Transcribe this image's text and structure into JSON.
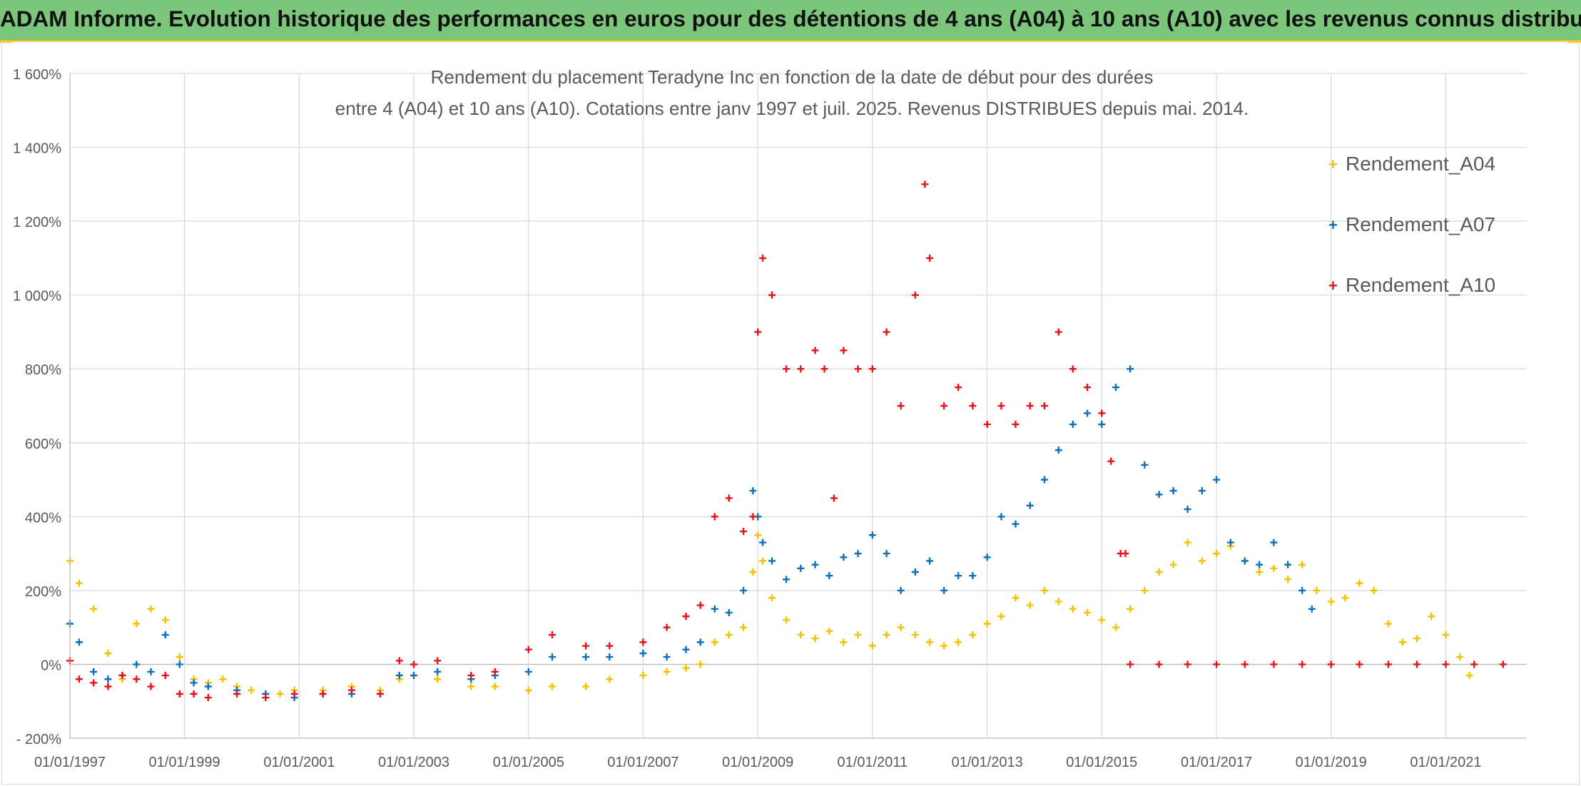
{
  "page_title": "ADAM Informe. Evolution historique des performances en euros pour des détentions de 4 ans (A04) à 10 ans (A10) avec les revenus connus distribués",
  "chart_data": {
    "type": "scatter",
    "title": "Rendement du placement Teradyne Inc en fonction de la date de début pour des durées",
    "subtitle": "entre 4 (A04) et 10 ans (A10). Cotations entre janv 1997 et juil. 2025. Revenus DISTRIBUES depuis mai. 2014.",
    "xlabel": "",
    "ylabel": "",
    "x_type": "date",
    "xlim": [
      "1997-01-01",
      "2022-06-01"
    ],
    "ylim": [
      -200,
      1600
    ],
    "y_unit": "%",
    "y_ticks": [
      -200,
      0,
      200,
      400,
      600,
      800,
      1000,
      1200,
      1400,
      1600
    ],
    "y_tick_labels": [
      "- 200%",
      "0%",
      "200%",
      "400%",
      "600%",
      "800%",
      "1 000%",
      "1 200%",
      "1 400%",
      "1 600%"
    ],
    "x_ticks": [
      "1997-01-01",
      "1999-01-01",
      "2001-01-01",
      "2003-01-01",
      "2005-01-01",
      "2007-01-01",
      "2009-01-01",
      "2011-01-01",
      "2013-01-01",
      "2015-01-01",
      "2017-01-01",
      "2019-01-01",
      "2021-01-01"
    ],
    "x_tick_labels": [
      "01/01/1997",
      "01/01/1999",
      "01/01/2001",
      "01/01/2003",
      "01/01/2005",
      "01/01/2007",
      "01/01/2009",
      "01/01/2011",
      "01/01/2013",
      "01/01/2015",
      "01/01/2017",
      "01/01/2019",
      "01/01/2021"
    ],
    "grid": true,
    "legend_position": "top-right",
    "marker": "+",
    "series": [
      {
        "name": "Rendement_A04",
        "color": "#f5c000",
        "x": [
          "1997-01-01",
          "1997-03-01",
          "1997-06-01",
          "1997-09-01",
          "1997-12-01",
          "1998-03-01",
          "1998-06-01",
          "1998-09-01",
          "1998-12-01",
          "1999-03-01",
          "1999-06-01",
          "1999-09-01",
          "1999-12-01",
          "2000-03-01",
          "2000-06-01",
          "2000-09-01",
          "2000-12-01",
          "2001-06-01",
          "2001-12-01",
          "2002-06-01",
          "2002-10-01",
          "2003-01-01",
          "2003-06-01",
          "2004-01-01",
          "2004-06-01",
          "2005-01-01",
          "2005-06-01",
          "2006-01-01",
          "2006-06-01",
          "2007-01-01",
          "2007-06-01",
          "2007-10-01",
          "2008-01-01",
          "2008-04-01",
          "2008-07-01",
          "2008-10-01",
          "2008-12-01",
          "2009-01-01",
          "2009-02-01",
          "2009-04-01",
          "2009-07-01",
          "2009-10-01",
          "2010-01-01",
          "2010-04-01",
          "2010-07-01",
          "2010-10-01",
          "2011-01-01",
          "2011-04-01",
          "2011-07-01",
          "2011-10-01",
          "2012-01-01",
          "2012-04-01",
          "2012-07-01",
          "2012-10-01",
          "2013-01-01",
          "2013-04-01",
          "2013-07-01",
          "2013-10-01",
          "2014-01-01",
          "2014-04-01",
          "2014-07-01",
          "2014-10-01",
          "2015-01-01",
          "2015-04-01",
          "2015-07-01",
          "2015-10-01",
          "2016-01-01",
          "2016-04-01",
          "2016-07-01",
          "2016-10-01",
          "2017-01-01",
          "2017-04-01",
          "2017-07-01",
          "2017-10-01",
          "2018-01-01",
          "2018-04-01",
          "2018-07-01",
          "2018-10-01",
          "2019-01-01",
          "2019-04-01",
          "2019-07-01",
          "2019-10-01",
          "2020-01-01",
          "2020-04-01",
          "2020-07-01",
          "2020-10-01",
          "2021-01-01",
          "2021-04-01",
          "2021-06-01"
        ],
        "y": [
          280,
          220,
          150,
          30,
          -40,
          110,
          150,
          120,
          20,
          -40,
          -50,
          -40,
          -60,
          -70,
          -80,
          -80,
          -70,
          -70,
          -60,
          -70,
          -40,
          -30,
          -40,
          -60,
          -60,
          -70,
          -60,
          -60,
          -40,
          -30,
          -20,
          -10,
          0,
          60,
          80,
          100,
          250,
          350,
          280,
          180,
          120,
          80,
          70,
          90,
          60,
          80,
          50,
          80,
          100,
          80,
          60,
          50,
          60,
          80,
          110,
          130,
          180,
          160,
          200,
          170,
          150,
          140,
          120,
          100,
          150,
          200,
          250,
          270,
          330,
          280,
          300,
          320,
          280,
          250,
          260,
          230,
          270,
          200,
          170,
          180,
          220,
          200,
          110,
          60,
          70,
          130,
          80,
          20,
          -30
        ]
      },
      {
        "name": "Rendement_A07",
        "color": "#0a6fbd",
        "x": [
          "1997-01-01",
          "1997-03-01",
          "1997-06-01",
          "1997-09-01",
          "1997-12-01",
          "1998-03-01",
          "1998-06-01",
          "1998-09-01",
          "1998-12-01",
          "1999-03-01",
          "1999-06-01",
          "1999-12-01",
          "2000-06-01",
          "2000-12-01",
          "2001-06-01",
          "2001-12-01",
          "2002-06-01",
          "2002-10-01",
          "2003-01-01",
          "2003-06-01",
          "2004-01-01",
          "2004-06-01",
          "2005-01-01",
          "2005-06-01",
          "2006-01-01",
          "2006-06-01",
          "2007-01-01",
          "2007-06-01",
          "2007-10-01",
          "2008-01-01",
          "2008-04-01",
          "2008-07-01",
          "2008-10-01",
          "2008-12-01",
          "2009-01-01",
          "2009-02-01",
          "2009-04-01",
          "2009-07-01",
          "2009-10-01",
          "2010-01-01",
          "2010-04-01",
          "2010-07-01",
          "2010-10-01",
          "2011-01-01",
          "2011-04-01",
          "2011-07-01",
          "2011-10-01",
          "2012-01-01",
          "2012-04-01",
          "2012-07-01",
          "2012-10-01",
          "2013-01-01",
          "2013-04-01",
          "2013-07-01",
          "2013-10-01",
          "2014-01-01",
          "2014-04-01",
          "2014-07-01",
          "2014-10-01",
          "2015-01-01",
          "2015-04-01",
          "2015-07-01",
          "2015-10-01",
          "2016-01-01",
          "2016-04-01",
          "2016-07-01",
          "2016-10-01",
          "2017-01-01",
          "2017-04-01",
          "2017-07-01",
          "2017-10-01",
          "2018-01-01",
          "2018-04-01",
          "2018-07-01",
          "2018-09-01"
        ],
        "y": [
          110,
          60,
          -20,
          -40,
          -30,
          0,
          -20,
          80,
          0,
          -50,
          -60,
          -70,
          -80,
          -90,
          -80,
          -80,
          -80,
          -30,
          -30,
          -20,
          -40,
          -30,
          -20,
          20,
          20,
          20,
          30,
          20,
          40,
          60,
          150,
          140,
          200,
          470,
          400,
          330,
          280,
          230,
          260,
          270,
          240,
          290,
          300,
          350,
          300,
          200,
          250,
          280,
          200,
          240,
          240,
          290,
          400,
          380,
          430,
          500,
          580,
          650,
          680,
          650,
          750,
          800,
          540,
          460,
          470,
          420,
          470,
          500,
          330,
          280,
          270,
          330,
          270,
          200,
          150
        ]
      },
      {
        "name": "Rendement_A10",
        "color": "#e8101a",
        "x": [
          "1997-01-01",
          "1997-03-01",
          "1997-06-01",
          "1997-09-01",
          "1997-12-01",
          "1998-03-01",
          "1998-06-01",
          "1998-09-01",
          "1998-12-01",
          "1999-03-01",
          "1999-06-01",
          "1999-12-01",
          "2000-06-01",
          "2000-12-01",
          "2001-06-01",
          "2001-12-01",
          "2002-06-01",
          "2002-10-01",
          "2003-01-01",
          "2003-06-01",
          "2004-01-01",
          "2004-06-01",
          "2005-01-01",
          "2005-06-01",
          "2006-01-01",
          "2006-06-01",
          "2007-01-01",
          "2007-06-01",
          "2007-10-01",
          "2008-01-01",
          "2008-04-01",
          "2008-07-01",
          "2008-10-01",
          "2008-12-01",
          "2009-01-01",
          "2009-02-01",
          "2009-04-01",
          "2009-07-01",
          "2009-10-01",
          "2010-01-01",
          "2010-03-01",
          "2010-05-01",
          "2010-07-01",
          "2010-10-01",
          "2011-01-01",
          "2011-04-01",
          "2011-07-01",
          "2011-10-01",
          "2011-12-01",
          "2012-01-01",
          "2012-04-01",
          "2012-07-01",
          "2012-10-01",
          "2013-01-01",
          "2013-04-01",
          "2013-07-01",
          "2013-10-01",
          "2014-01-01",
          "2014-04-01",
          "2014-07-01",
          "2014-10-01",
          "2015-01-01",
          "2015-03-01",
          "2015-05-01",
          "2015-06-01",
          "2015-07-01",
          "2016-01-01",
          "2016-07-01",
          "2017-01-01",
          "2017-07-01",
          "2018-01-01",
          "2018-07-01",
          "2019-01-01",
          "2019-07-01",
          "2020-01-01",
          "2020-07-01",
          "2021-01-01",
          "2021-07-01",
          "2022-01-01"
        ],
        "y": [
          10,
          -40,
          -50,
          -60,
          -30,
          -40,
          -60,
          -30,
          -80,
          -80,
          -90,
          -80,
          -90,
          -80,
          -80,
          -70,
          -80,
          10,
          0,
          10,
          -30,
          -20,
          40,
          80,
          50,
          50,
          60,
          100,
          130,
          160,
          400,
          450,
          360,
          400,
          900,
          1100,
          1000,
          800,
          800,
          850,
          800,
          450,
          850,
          800,
          800,
          900,
          700,
          1000,
          1300,
          1100,
          700,
          750,
          700,
          650,
          700,
          650,
          700,
          700,
          900,
          800,
          750,
          680,
          550,
          300,
          300,
          0,
          0,
          0,
          0,
          0,
          0,
          0,
          0,
          0,
          0,
          0,
          0,
          0,
          0
        ]
      }
    ]
  }
}
